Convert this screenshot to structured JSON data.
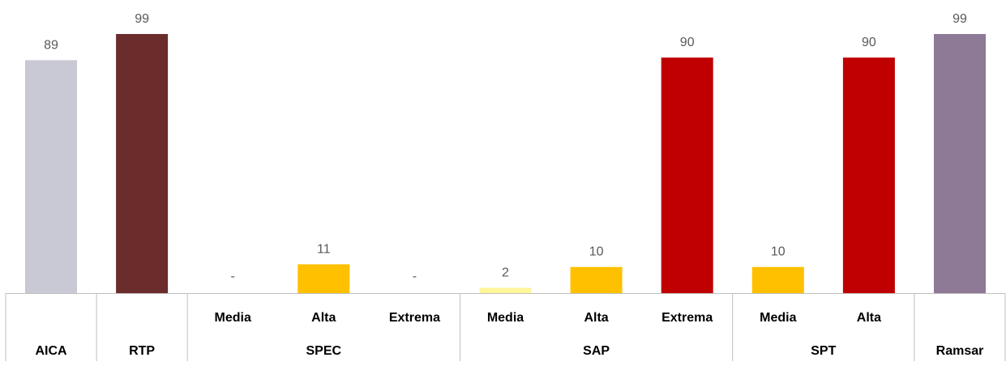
{
  "chart_data": {
    "type": "bar",
    "title": "",
    "xlabel": "",
    "ylabel": "",
    "ylim": [
      0,
      100
    ],
    "grid": false,
    "legend": "none",
    "bars": [
      {
        "group": "AICA",
        "label": "",
        "value": 89,
        "display": "89",
        "color": "#c9c9d6"
      },
      {
        "group": "RTP",
        "label": "",
        "value": 99,
        "display": "99",
        "color": "#6b2c2c"
      },
      {
        "group": "SPEC",
        "label": "Media",
        "value": 0,
        "display": "-",
        "color": "#fff59a"
      },
      {
        "group": "SPEC",
        "label": "Alta",
        "value": 11,
        "display": "11",
        "color": "#ffc000"
      },
      {
        "group": "SPEC",
        "label": "Extrema",
        "value": 0,
        "display": "-",
        "color": "#c00000"
      },
      {
        "group": "SAP",
        "label": "Media",
        "value": 2,
        "display": "2",
        "color": "#fff59a"
      },
      {
        "group": "SAP",
        "label": "Alta",
        "value": 10,
        "display": "10",
        "color": "#ffc000"
      },
      {
        "group": "SAP",
        "label": "Extrema",
        "value": 90,
        "display": "90",
        "color": "#c00000"
      },
      {
        "group": "SPT",
        "label": "Media",
        "value": 10,
        "display": "10",
        "color": "#ffc000"
      },
      {
        "group": "SPT",
        "label": "Alta",
        "value": 90,
        "display": "90",
        "color": "#c00000"
      },
      {
        "group": "Ramsar",
        "label": "",
        "value": 99,
        "display": "99",
        "color": "#8e7a96"
      }
    ],
    "groups": [
      {
        "name": "AICA",
        "start": 0,
        "count": 1
      },
      {
        "name": "RTP",
        "start": 1,
        "count": 1
      },
      {
        "name": "SPEC",
        "start": 2,
        "count": 3
      },
      {
        "name": "SAP",
        "start": 5,
        "count": 3
      },
      {
        "name": "SPT",
        "start": 8,
        "count": 2
      },
      {
        "name": "Ramsar",
        "start": 10,
        "count": 1
      }
    ]
  }
}
